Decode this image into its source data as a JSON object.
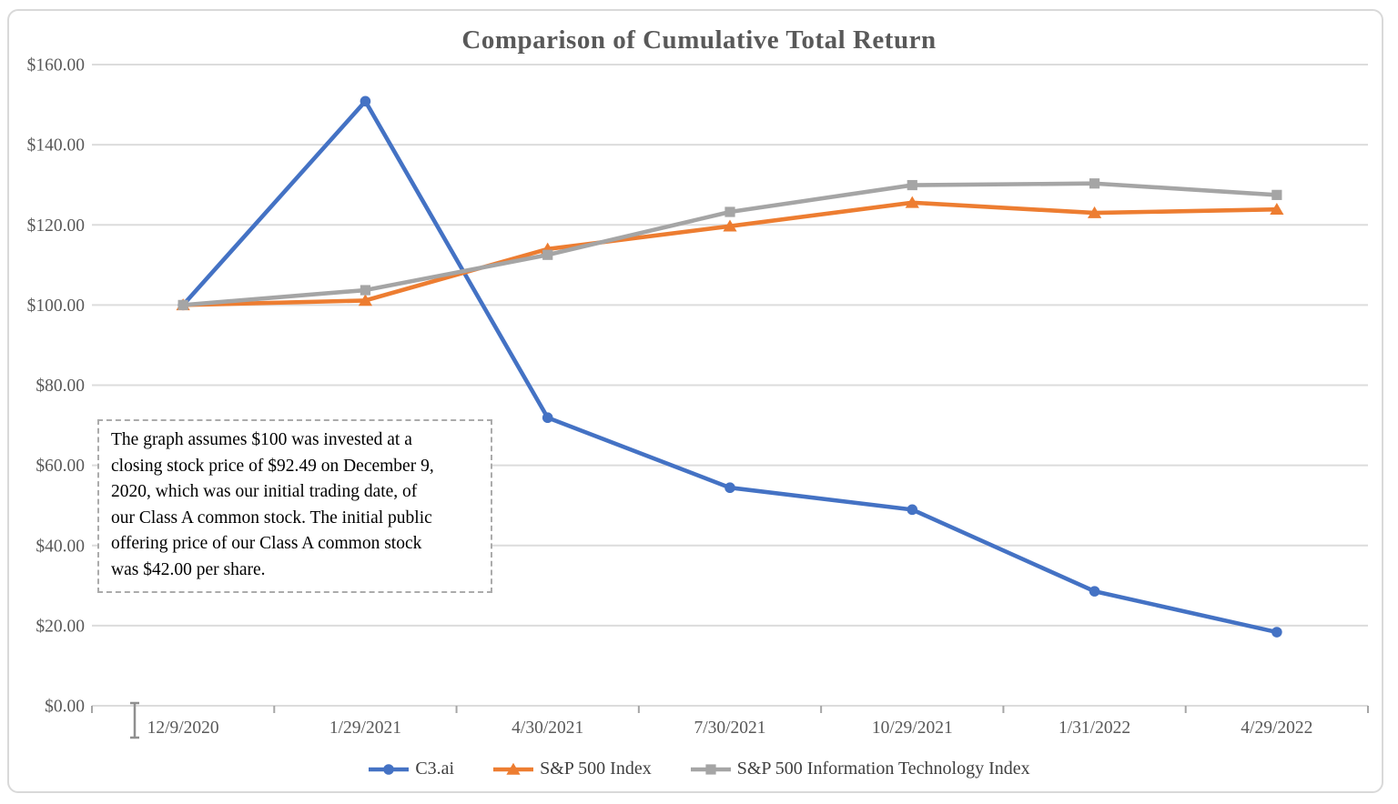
{
  "chart_data": {
    "type": "line",
    "title": "Comparison of Cumulative Total Return",
    "categories": [
      "12/9/2020",
      "1/29/2021",
      "4/30/2021",
      "7/30/2021",
      "10/29/2021",
      "1/31/2022",
      "4/29/2022"
    ],
    "series": [
      {
        "name": "C3.ai",
        "color": "#4472C4",
        "marker": "circle",
        "values": [
          100.0,
          150.85,
          71.89,
          54.42,
          48.94,
          28.57,
          18.38
        ]
      },
      {
        "name": "S&P 500 Index",
        "color": "#ED7D31",
        "marker": "triangle",
        "values": [
          100.0,
          101.13,
          113.97,
          119.68,
          125.55,
          122.99,
          123.87
        ]
      },
      {
        "name": "S&P 500 Information Technology Index",
        "color": "#A5A5A5",
        "marker": "square",
        "values": [
          100.0,
          103.71,
          112.52,
          123.23,
          129.92,
          130.33,
          127.47
        ]
      }
    ],
    "y_axis": {
      "min": 0,
      "max": 160,
      "step": 20,
      "tick_labels": [
        "$0.00",
        "$20.00",
        "$40.00",
        "$60.00",
        "$80.00",
        "$100.00",
        "$120.00",
        "$140.00",
        "$160.00"
      ]
    },
    "x_axis": {
      "tick_label_format": "date"
    },
    "legend_position": "bottom",
    "grid": true,
    "colors": {
      "gridline": "#DCDCDC",
      "tick": "#A6A6A6",
      "axis_label": "#595959",
      "title": "#595959",
      "frame_border": "#D9D9D9"
    }
  },
  "annotation": {
    "lines": [
      "The graph assumes $100 was invested at a",
      "closing stock price of $92.49 on December 9,",
      "2020, which was our initial trading date, of",
      "our Class A common stock. The initial public",
      "offering price of our Class A common stock",
      "was $42.00 per share."
    ]
  }
}
